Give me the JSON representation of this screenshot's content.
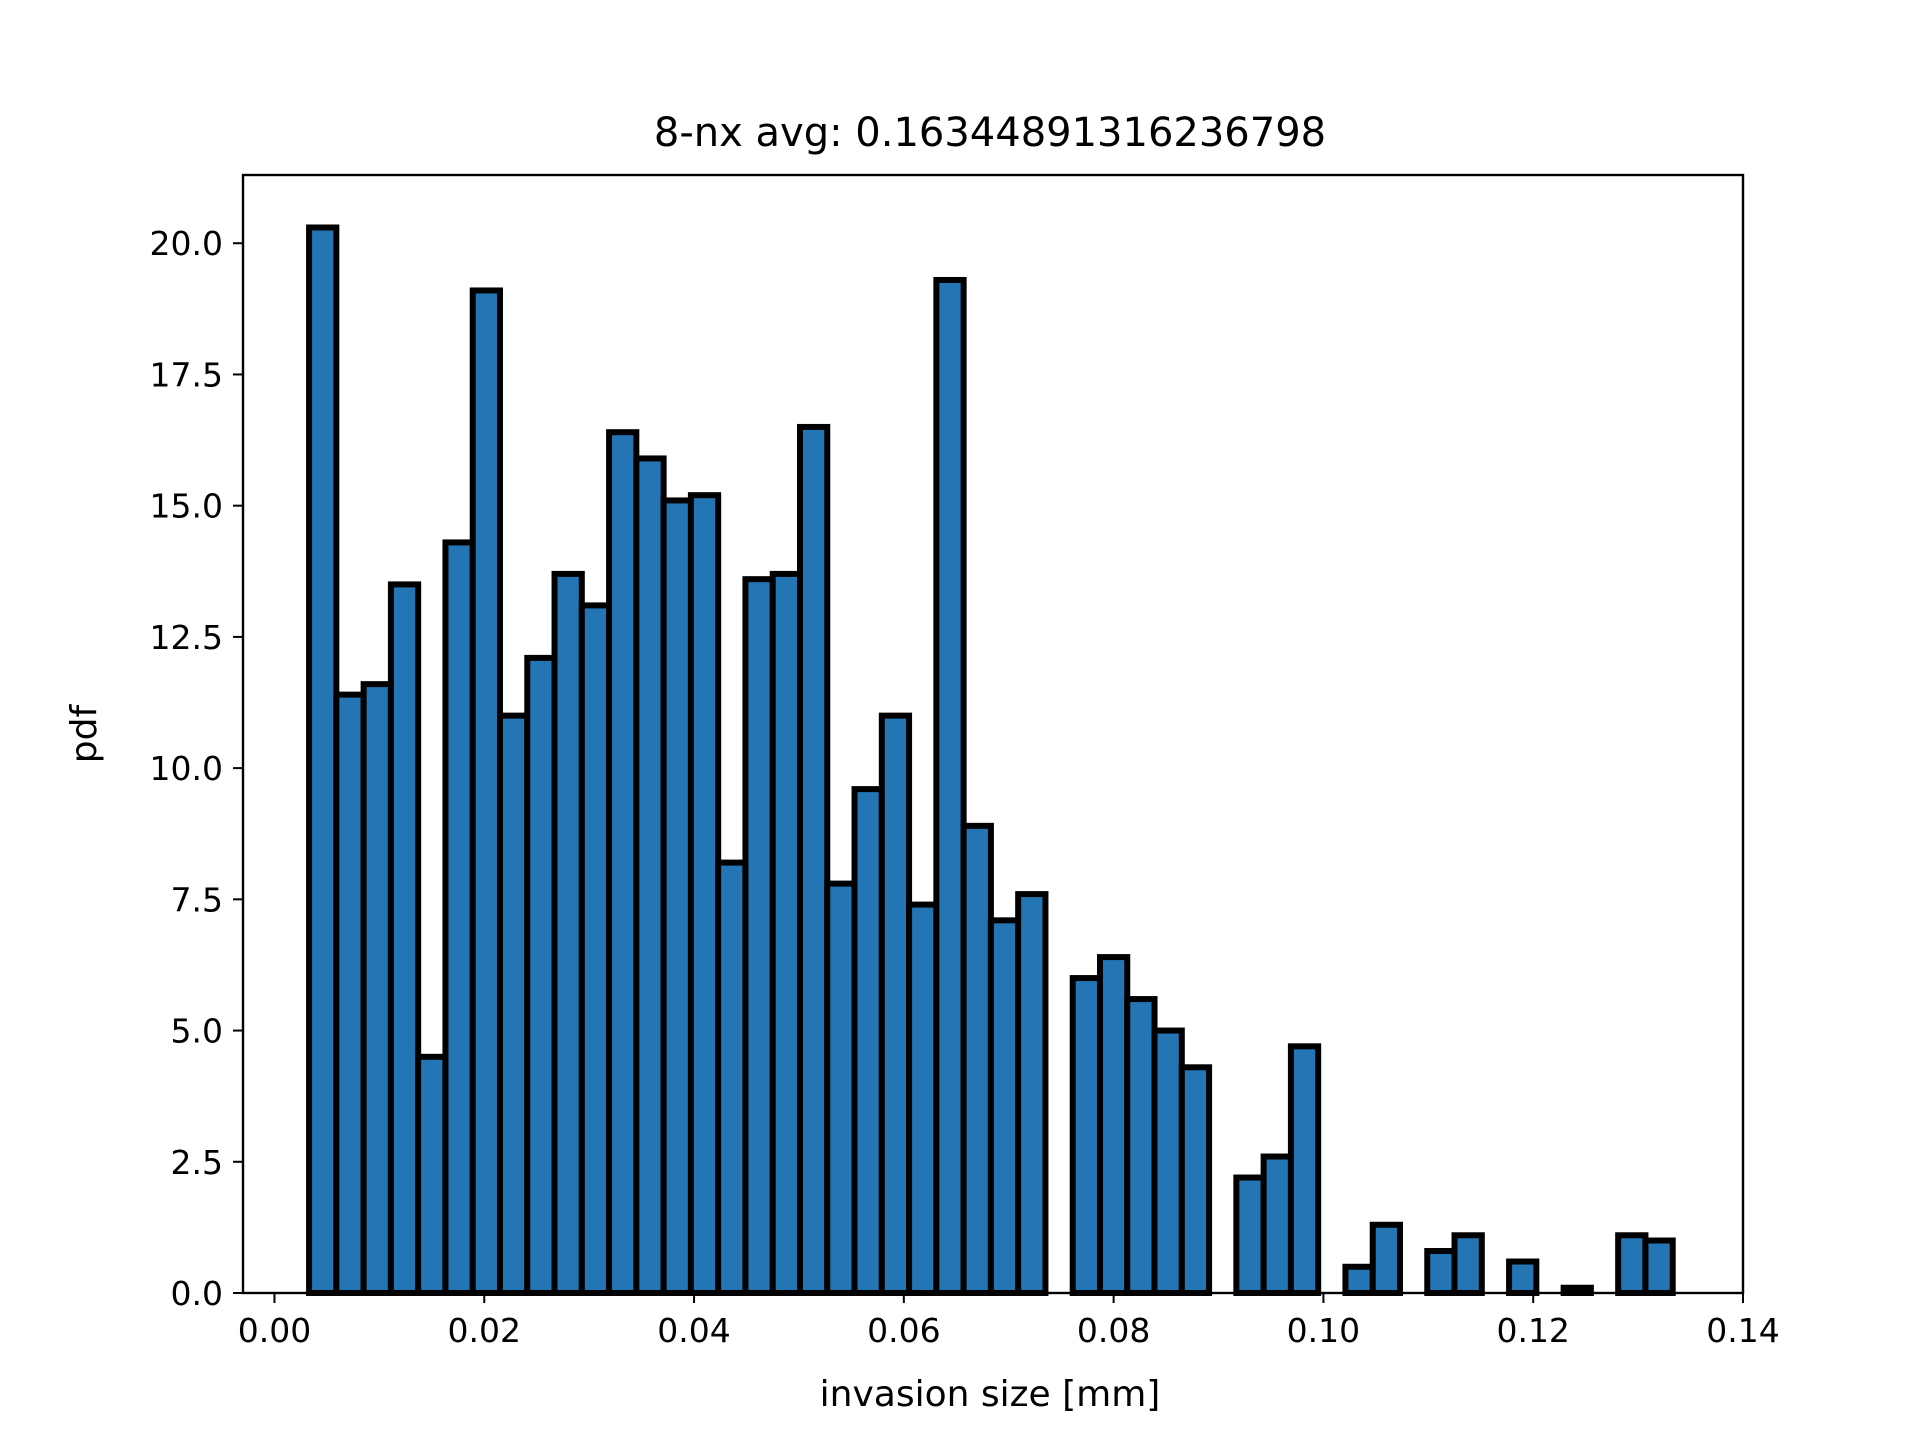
{
  "chart_data": {
    "type": "bar",
    "subtype": "histogram",
    "title": "8-nx avg: 0.16344891316236798",
    "xlabel": "invasion size [mm]",
    "ylabel": "pdf",
    "xlim": [
      -0.003,
      0.14
    ],
    "ylim": [
      0,
      21.3
    ],
    "x_ticks": [
      {
        "value": 0.0,
        "label": "0.00"
      },
      {
        "value": 0.02,
        "label": "0.02"
      },
      {
        "value": 0.04,
        "label": "0.04"
      },
      {
        "value": 0.06,
        "label": "0.06"
      },
      {
        "value": 0.08,
        "label": "0.08"
      },
      {
        "value": 0.1,
        "label": "0.10"
      },
      {
        "value": 0.12,
        "label": "0.12"
      },
      {
        "value": 0.14,
        "label": "0.14"
      }
    ],
    "y_ticks": [
      {
        "value": 0.0,
        "label": "0.0"
      },
      {
        "value": 2.5,
        "label": "2.5"
      },
      {
        "value": 5.0,
        "label": "5.0"
      },
      {
        "value": 7.5,
        "label": "7.5"
      },
      {
        "value": 10.0,
        "label": "10.0"
      },
      {
        "value": 12.5,
        "label": "12.5"
      },
      {
        "value": 15.0,
        "label": "15.0"
      },
      {
        "value": 17.5,
        "label": "17.5"
      },
      {
        "value": 20.0,
        "label": "20.0"
      }
    ],
    "bin_start": 0.0033,
    "bin_width": 0.0026,
    "values": [
      20.3,
      11.4,
      11.6,
      13.5,
      4.5,
      14.3,
      19.1,
      11.0,
      12.1,
      13.7,
      13.1,
      16.4,
      15.9,
      15.1,
      15.2,
      8.2,
      13.6,
      13.7,
      16.5,
      7.8,
      9.6,
      11.0,
      7.4,
      19.3,
      8.9,
      7.1,
      7.6,
      0.0,
      6.0,
      6.4,
      5.6,
      5.0,
      4.3,
      0.0,
      2.2,
      2.6,
      4.7,
      0.0,
      0.5,
      1.3,
      0.0,
      0.8,
      1.1,
      0.0,
      0.6,
      0.0,
      0.1,
      0.0,
      1.1,
      1.0
    ],
    "grid": false,
    "colors": {
      "bar_fill": "#2375b4",
      "bar_edge": "#000000",
      "axes": "#000000",
      "background": "#ffffff"
    }
  }
}
